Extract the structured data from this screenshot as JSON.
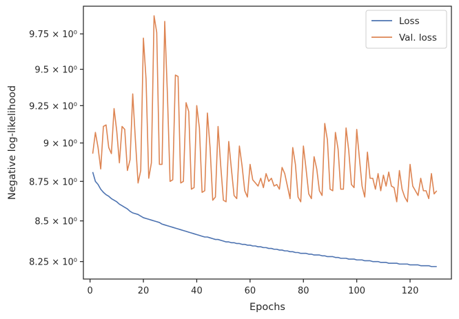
{
  "chart_data": {
    "type": "line",
    "title": "",
    "xlabel": "Epochs",
    "ylabel": "Negative log-likelihood",
    "y_scale": "log",
    "xlim": [
      -2.5,
      135.5
    ],
    "ylim": [
      8.145,
      9.95
    ],
    "grid": false,
    "legend_position": "top-right",
    "x_ticks": [
      0,
      20,
      40,
      60,
      80,
      100,
      120
    ],
    "x_tick_labels": [
      "0",
      "20",
      "40",
      "60",
      "80",
      "100",
      "120"
    ],
    "y_ticks": [
      8.25,
      8.5,
      8.75,
      9.0,
      9.25,
      9.5,
      9.75
    ],
    "y_tick_labels": [
      "8.25 × 10⁰",
      "8.5 × 10⁰",
      "8.75 × 10⁰",
      "9 × 10⁰",
      "9.25 × 10⁰",
      "9.5 × 10⁰",
      "9.75 × 10⁰"
    ],
    "x_start": 1,
    "x_step": 1,
    "series": [
      {
        "name": "Loss",
        "color": "#4c72b0",
        "values": [
          8.81,
          8.75,
          8.73,
          8.7,
          8.68,
          8.665,
          8.655,
          8.64,
          8.63,
          8.62,
          8.605,
          8.595,
          8.585,
          8.575,
          8.56,
          8.55,
          8.545,
          8.54,
          8.53,
          8.52,
          8.515,
          8.51,
          8.505,
          8.5,
          8.495,
          8.49,
          8.48,
          8.475,
          8.47,
          8.465,
          8.46,
          8.455,
          8.45,
          8.445,
          8.44,
          8.435,
          8.43,
          8.425,
          8.42,
          8.415,
          8.41,
          8.405,
          8.4,
          8.4,
          8.395,
          8.39,
          8.385,
          8.385,
          8.38,
          8.375,
          8.37,
          8.37,
          8.365,
          8.365,
          8.36,
          8.36,
          8.355,
          8.355,
          8.35,
          8.35,
          8.345,
          8.345,
          8.34,
          8.34,
          8.335,
          8.335,
          8.33,
          8.33,
          8.325,
          8.325,
          8.32,
          8.32,
          8.315,
          8.315,
          8.31,
          8.31,
          8.305,
          8.305,
          8.3,
          8.3,
          8.3,
          8.295,
          8.295,
          8.29,
          8.29,
          8.29,
          8.285,
          8.285,
          8.28,
          8.28,
          8.28,
          8.275,
          8.275,
          8.27,
          8.27,
          8.27,
          8.265,
          8.265,
          8.265,
          8.26,
          8.26,
          8.26,
          8.255,
          8.255,
          8.255,
          8.25,
          8.25,
          8.25,
          8.245,
          8.245,
          8.245,
          8.24,
          8.24,
          8.24,
          8.24,
          8.235,
          8.235,
          8.235,
          8.235,
          8.23,
          8.23,
          8.23,
          8.23,
          8.225,
          8.225,
          8.225,
          8.225,
          8.22,
          8.22,
          8.22
        ]
      },
      {
        "name": "Val. loss",
        "color": "#dd8452",
        "values": [
          8.93,
          9.07,
          8.97,
          8.83,
          9.11,
          9.12,
          8.97,
          8.93,
          9.23,
          9.08,
          8.87,
          9.11,
          9.09,
          8.82,
          8.89,
          9.33,
          9.02,
          8.74,
          8.82,
          9.72,
          9.43,
          8.77,
          8.87,
          9.88,
          9.76,
          8.86,
          8.86,
          9.84,
          9.33,
          8.75,
          8.76,
          9.46,
          9.45,
          8.74,
          8.75,
          9.27,
          9.21,
          8.7,
          8.71,
          9.25,
          9.1,
          8.68,
          8.69,
          9.2,
          8.97,
          8.63,
          8.65,
          9.11,
          8.85,
          8.63,
          8.62,
          9.01,
          8.83,
          8.66,
          8.64,
          8.98,
          8.85,
          8.69,
          8.65,
          8.86,
          8.76,
          8.74,
          8.72,
          8.77,
          8.71,
          8.8,
          8.75,
          8.77,
          8.72,
          8.73,
          8.7,
          8.84,
          8.8,
          8.72,
          8.64,
          8.97,
          8.86,
          8.65,
          8.62,
          8.98,
          8.83,
          8.67,
          8.64,
          8.91,
          8.83,
          8.69,
          8.66,
          9.13,
          9.02,
          8.7,
          8.69,
          9.07,
          8.96,
          8.7,
          8.7,
          9.1,
          8.95,
          8.73,
          8.71,
          9.09,
          8.9,
          8.72,
          8.65,
          8.94,
          8.77,
          8.77,
          8.7,
          8.8,
          8.69,
          8.79,
          8.72,
          8.81,
          8.72,
          8.71,
          8.62,
          8.82,
          8.7,
          8.65,
          8.62,
          8.86,
          8.72,
          8.69,
          8.66,
          8.77,
          8.69,
          8.69,
          8.64,
          8.8,
          8.67,
          8.69
        ]
      }
    ]
  }
}
